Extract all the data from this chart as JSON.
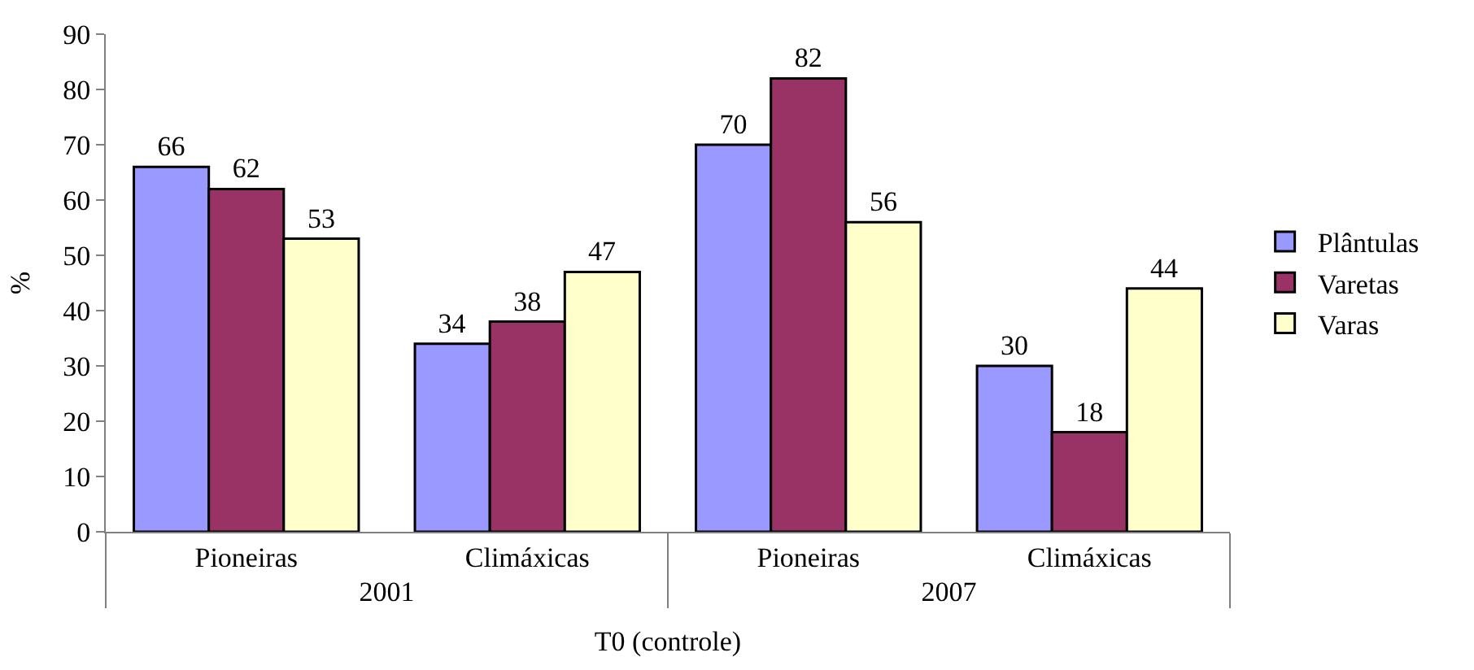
{
  "chart_data": {
    "type": "bar",
    "ylabel": "%",
    "xlabel": "T0 (controle)",
    "categories": [
      "Pioneiras",
      "Climáxicas",
      "Pioneiras",
      "Climáxicas"
    ],
    "annotations": [
      "2001",
      "2007"
    ],
    "series": [
      {
        "name": "Plântulas",
        "color": "#9999ff",
        "values": [
          66,
          34,
          70,
          30
        ]
      },
      {
        "name": "Varetas",
        "color": "#993366",
        "values": [
          62,
          38,
          82,
          18
        ]
      },
      {
        "name": "Varas",
        "color": "#ffffcc",
        "values": [
          53,
          47,
          56,
          44
        ]
      }
    ],
    "ylim": [
      0,
      90
    ],
    "yticks": [
      0,
      10,
      20,
      30,
      40,
      50,
      60,
      70,
      80,
      90
    ],
    "data_labels": true,
    "legend": "right"
  }
}
